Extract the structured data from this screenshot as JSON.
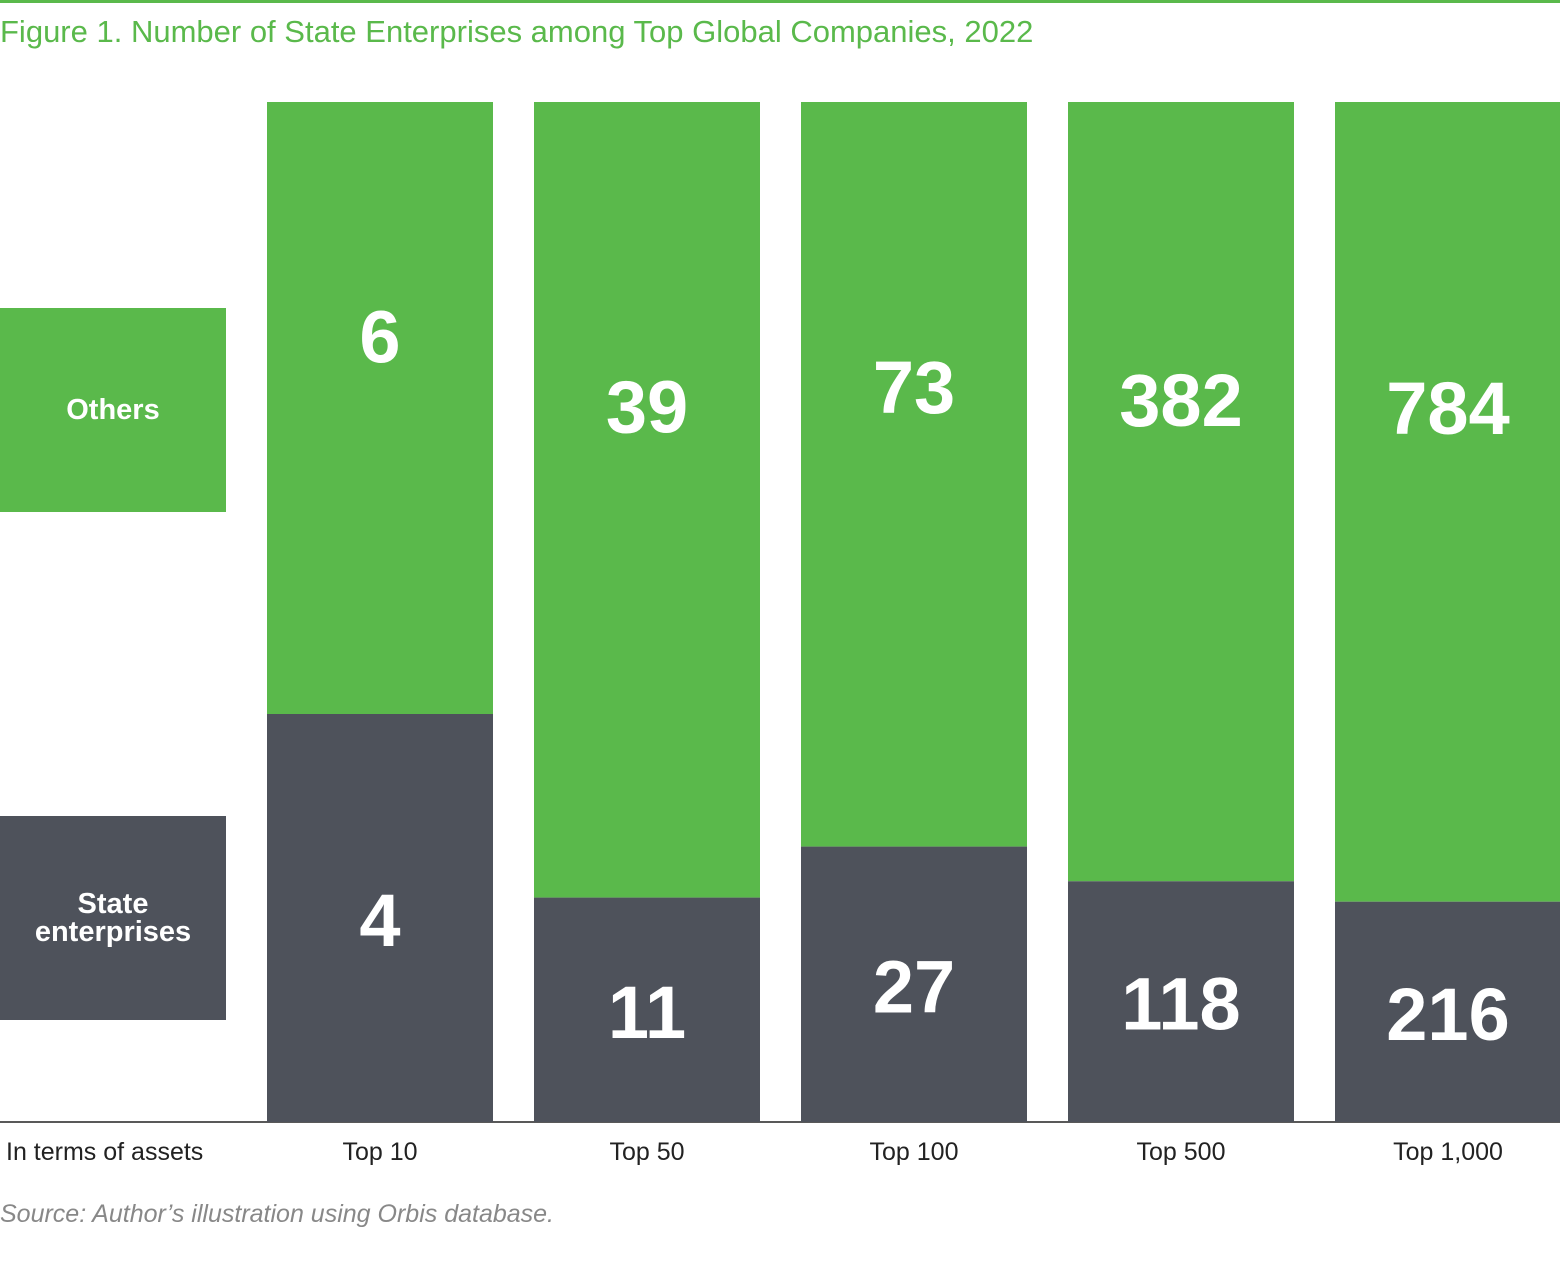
{
  "title": "Figure 1. Number of State Enterprises among Top Global Companies, 2022",
  "source": "Source: Author’s illustration using Orbis database.",
  "axis_title": "In terms of assets",
  "colors": {
    "others": "#5ab94b",
    "state": "#4e525b",
    "title": "#5ab94b"
  },
  "legend": {
    "others": "Others",
    "state": "State enterprises"
  },
  "chart_data": {
    "type": "bar",
    "stacked": true,
    "normalized": true,
    "title": "Figure 1. Number of State Enterprises among Top Global Companies, 2022",
    "xlabel": "In terms of assets",
    "ylabel": "",
    "categories": [
      "Top 10",
      "Top 50",
      "Top 100",
      "Top 500",
      "Top 1,000"
    ],
    "series": [
      {
        "name": "State enterprises",
        "values": [
          4,
          11,
          27,
          118,
          216
        ]
      },
      {
        "name": "Others",
        "values": [
          6,
          39,
          73,
          382,
          784
        ]
      }
    ],
    "legend_position": "left"
  }
}
